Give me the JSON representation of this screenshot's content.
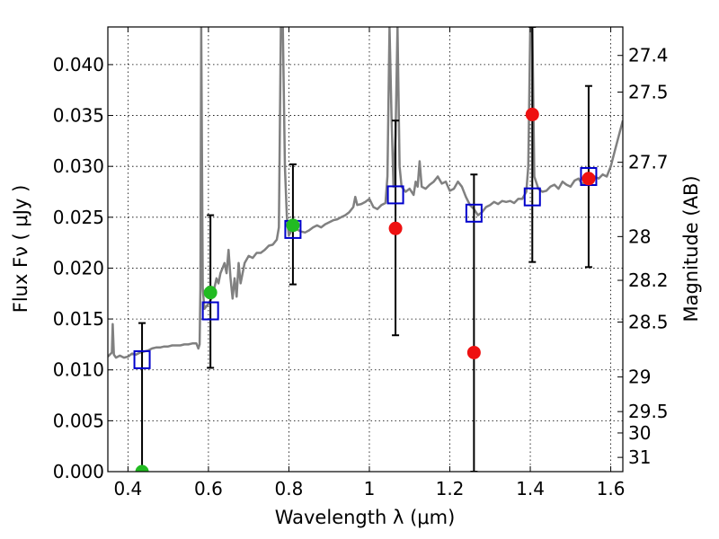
{
  "chart_data": {
    "type": "scatter",
    "xlabel": "Wavelength  λ (μm)",
    "ylabel_left": "Flux  Fν  ( μJy )",
    "ylabel_right": "Magnitude (AB)",
    "xlim": [
      0.35,
      1.63
    ],
    "ylim": [
      0.0,
      0.0437
    ],
    "grid": true,
    "x_ticks": [
      {
        "value": 0.4,
        "label": "0.4"
      },
      {
        "value": 0.6,
        "label": "0.6"
      },
      {
        "value": 0.8,
        "label": "0.8"
      },
      {
        "value": 1.0,
        "label": "1"
      },
      {
        "value": 1.2,
        "label": "1.2"
      },
      {
        "value": 1.4,
        "label": "1.4"
      },
      {
        "value": 1.6,
        "label": "1.6"
      }
    ],
    "y_ticks": [
      {
        "value": 0.0,
        "label": "0.000"
      },
      {
        "value": 0.005,
        "label": "0.005"
      },
      {
        "value": 0.01,
        "label": "0.010"
      },
      {
        "value": 0.015,
        "label": "0.015"
      },
      {
        "value": 0.02,
        "label": "0.020"
      },
      {
        "value": 0.025,
        "label": "0.025"
      },
      {
        "value": 0.03,
        "label": "0.030"
      },
      {
        "value": 0.035,
        "label": "0.035"
      },
      {
        "value": 0.04,
        "label": "0.040"
      }
    ],
    "mag_ticks": [
      {
        "flux": 0.0409,
        "label": "27.4"
      },
      {
        "flux": 0.0373,
        "label": "27.5"
      },
      {
        "flux": 0.0304,
        "label": "27.7"
      },
      {
        "flux": 0.0231,
        "label": "28"
      },
      {
        "flux": 0.0188,
        "label": "28.2"
      },
      {
        "flux": 0.0147,
        "label": "28.5"
      },
      {
        "flux": 0.0093,
        "label": "29"
      },
      {
        "flux": 0.0059,
        "label": "29.5"
      },
      {
        "flux": 0.0038,
        "label": "30"
      },
      {
        "flux": 0.0014,
        "label": "31"
      }
    ],
    "series": [
      {
        "name": "model spectrum",
        "kind": "line",
        "color": "#808080",
        "points": [
          [
            0.35,
            0.0113
          ],
          [
            0.355,
            0.0115
          ],
          [
            0.36,
            0.0117
          ],
          [
            0.362,
            0.0145
          ],
          [
            0.365,
            0.0115
          ],
          [
            0.37,
            0.0112
          ],
          [
            0.38,
            0.0114
          ],
          [
            0.39,
            0.0112
          ],
          [
            0.4,
            0.0113
          ],
          [
            0.41,
            0.0116
          ],
          [
            0.42,
            0.0115
          ],
          [
            0.43,
            0.0117
          ],
          [
            0.44,
            0.0118
          ],
          [
            0.45,
            0.0119
          ],
          [
            0.46,
            0.0121
          ],
          [
            0.47,
            0.0122
          ],
          [
            0.48,
            0.0122
          ],
          [
            0.49,
            0.0123
          ],
          [
            0.5,
            0.0123
          ],
          [
            0.51,
            0.0124
          ],
          [
            0.52,
            0.0124
          ],
          [
            0.53,
            0.0124
          ],
          [
            0.54,
            0.0125
          ],
          [
            0.55,
            0.0125
          ],
          [
            0.56,
            0.0126
          ],
          [
            0.57,
            0.0126
          ],
          [
            0.575,
            0.0121
          ],
          [
            0.578,
            0.0125
          ],
          [
            0.58,
            0.018
          ],
          [
            0.582,
            0.0437
          ],
          [
            0.584,
            0.03
          ],
          [
            0.586,
            0.018
          ],
          [
            0.59,
            0.016
          ],
          [
            0.6,
            0.0165
          ],
          [
            0.61,
            0.0172
          ],
          [
            0.62,
            0.019
          ],
          [
            0.625,
            0.0185
          ],
          [
            0.63,
            0.0195
          ],
          [
            0.635,
            0.02
          ],
          [
            0.64,
            0.0205
          ],
          [
            0.645,
            0.0195
          ],
          [
            0.65,
            0.0218
          ],
          [
            0.655,
            0.019
          ],
          [
            0.66,
            0.017
          ],
          [
            0.665,
            0.019
          ],
          [
            0.67,
            0.0172
          ],
          [
            0.675,
            0.0205
          ],
          [
            0.68,
            0.0185
          ],
          [
            0.69,
            0.0205
          ],
          [
            0.7,
            0.0212
          ],
          [
            0.71,
            0.021
          ],
          [
            0.72,
            0.0215
          ],
          [
            0.73,
            0.0215
          ],
          [
            0.74,
            0.0218
          ],
          [
            0.75,
            0.0222
          ],
          [
            0.76,
            0.0223
          ],
          [
            0.77,
            0.0228
          ],
          [
            0.775,
            0.024
          ],
          [
            0.78,
            0.0437
          ],
          [
            0.785,
            0.0437
          ],
          [
            0.79,
            0.03
          ],
          [
            0.795,
            0.025
          ],
          [
            0.8,
            0.0232
          ],
          [
            0.81,
            0.024
          ],
          [
            0.82,
            0.0238
          ],
          [
            0.83,
            0.0236
          ],
          [
            0.84,
            0.0235
          ],
          [
            0.85,
            0.0237
          ],
          [
            0.86,
            0.024
          ],
          [
            0.87,
            0.0242
          ],
          [
            0.88,
            0.024
          ],
          [
            0.89,
            0.0243
          ],
          [
            0.9,
            0.0245
          ],
          [
            0.91,
            0.0247
          ],
          [
            0.92,
            0.0248
          ],
          [
            0.93,
            0.025
          ],
          [
            0.94,
            0.0252
          ],
          [
            0.95,
            0.0255
          ],
          [
            0.96,
            0.026
          ],
          [
            0.965,
            0.027
          ],
          [
            0.97,
            0.0262
          ],
          [
            0.98,
            0.0263
          ],
          [
            0.99,
            0.0265
          ],
          [
            1.0,
            0.0268
          ],
          [
            1.01,
            0.026
          ],
          [
            1.02,
            0.0258
          ],
          [
            1.03,
            0.0262
          ],
          [
            1.04,
            0.0264
          ],
          [
            1.045,
            0.029
          ],
          [
            1.05,
            0.0437
          ],
          [
            1.055,
            0.035
          ],
          [
            1.06,
            0.028
          ],
          [
            1.065,
            0.033
          ],
          [
            1.07,
            0.0437
          ],
          [
            1.075,
            0.03
          ],
          [
            1.08,
            0.028
          ],
          [
            1.09,
            0.0275
          ],
          [
            1.1,
            0.0278
          ],
          [
            1.11,
            0.0272
          ],
          [
            1.115,
            0.0285
          ],
          [
            1.12,
            0.028
          ],
          [
            1.125,
            0.0305
          ],
          [
            1.13,
            0.028
          ],
          [
            1.14,
            0.0278
          ],
          [
            1.15,
            0.0282
          ],
          [
            1.16,
            0.0285
          ],
          [
            1.17,
            0.029
          ],
          [
            1.18,
            0.0283
          ],
          [
            1.19,
            0.0285
          ],
          [
            1.2,
            0.0276
          ],
          [
            1.21,
            0.0278
          ],
          [
            1.22,
            0.0285
          ],
          [
            1.23,
            0.028
          ],
          [
            1.24,
            0.027
          ],
          [
            1.25,
            0.0262
          ],
          [
            1.26,
            0.0258
          ],
          [
            1.27,
            0.0252
          ],
          [
            1.28,
            0.0255
          ],
          [
            1.29,
            0.026
          ],
          [
            1.3,
            0.0262
          ],
          [
            1.31,
            0.0265
          ],
          [
            1.32,
            0.0263
          ],
          [
            1.33,
            0.0266
          ],
          [
            1.34,
            0.0265
          ],
          [
            1.35,
            0.0266
          ],
          [
            1.36,
            0.0264
          ],
          [
            1.37,
            0.0268
          ],
          [
            1.38,
            0.0268
          ],
          [
            1.39,
            0.0275
          ],
          [
            1.395,
            0.03
          ],
          [
            1.4,
            0.0437
          ],
          [
            1.405,
            0.0437
          ],
          [
            1.41,
            0.029
          ],
          [
            1.42,
            0.0278
          ],
          [
            1.43,
            0.0275
          ],
          [
            1.44,
            0.0276
          ],
          [
            1.45,
            0.028
          ],
          [
            1.46,
            0.0282
          ],
          [
            1.47,
            0.0278
          ],
          [
            1.48,
            0.0285
          ],
          [
            1.49,
            0.0282
          ],
          [
            1.5,
            0.028
          ],
          [
            1.51,
            0.0286
          ],
          [
            1.52,
            0.0288
          ],
          [
            1.53,
            0.0282
          ],
          [
            1.54,
            0.0288
          ],
          [
            1.55,
            0.0285
          ],
          [
            1.56,
            0.029
          ],
          [
            1.57,
            0.0288
          ],
          [
            1.58,
            0.0292
          ],
          [
            1.59,
            0.029
          ],
          [
            1.6,
            0.03
          ],
          [
            1.61,
            0.0315
          ],
          [
            1.62,
            0.033
          ],
          [
            1.63,
            0.0345
          ]
        ]
      },
      {
        "name": "model band fluxes",
        "kind": "square",
        "color": "#0000cc",
        "points": [
          [
            0.435,
            0.011
          ],
          [
            0.605,
            0.0158
          ],
          [
            0.81,
            0.0238
          ],
          [
            1.065,
            0.0272
          ],
          [
            1.26,
            0.0254
          ],
          [
            1.405,
            0.027
          ],
          [
            1.545,
            0.029
          ]
        ]
      },
      {
        "name": "observed fluxes",
        "kind": "circle",
        "color": "#ee1111",
        "points": [
          [
            1.065,
            0.0239
          ],
          [
            1.26,
            0.0117
          ],
          [
            1.405,
            0.0351
          ],
          [
            1.545,
            0.0288
          ]
        ]
      },
      {
        "name": "observed fluxes (optical)",
        "kind": "circle",
        "color": "#22bb22",
        "points": [
          [
            0.435,
            0.0
          ],
          [
            0.605,
            0.0176
          ],
          [
            0.81,
            0.0242
          ]
        ]
      }
    ],
    "error_bars": [
      {
        "x": 0.435,
        "low": 0.0,
        "high": 0.0146
      },
      {
        "x": 0.605,
        "low": 0.0102,
        "high": 0.0252
      },
      {
        "x": 0.81,
        "low": 0.0184,
        "high": 0.0302
      },
      {
        "x": 1.065,
        "low": 0.0134,
        "high": 0.0345
      },
      {
        "x": 1.26,
        "low": 0.0,
        "high": 0.0292
      },
      {
        "x": 1.405,
        "low": 0.0206,
        "high": 0.0437
      },
      {
        "x": 1.545,
        "low": 0.0201,
        "high": 0.0379
      }
    ]
  }
}
